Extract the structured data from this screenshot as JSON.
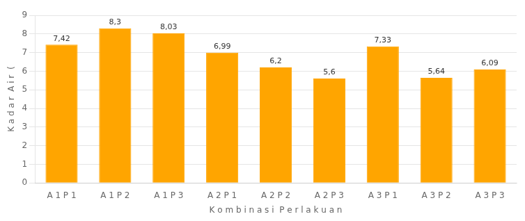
{
  "chart_data": {
    "type": "bar",
    "categories": [
      "A 1 P 1",
      "A 1 P 2",
      "A 1 P 3",
      "A 2 P 1",
      "A 2 P 2",
      "A 2 P 3",
      "A 3 P 1",
      "A 3 P 2",
      "A 3 P 3"
    ],
    "values": [
      7.42,
      8.3,
      8.03,
      6.99,
      6.2,
      5.6,
      7.33,
      5.64,
      6.09
    ],
    "value_labels": [
      "7,42",
      "8,3",
      "8,03",
      "6,99",
      "6,2",
      "5,6",
      "7,33",
      "5,64",
      "6,09"
    ],
    "data_labels": true,
    "color": "#FFA500",
    "xlabel": "K o m b i n a s i  P e r l a k u a n",
    "ylabel": "K a d a r  A i r  (",
    "ylim": [
      0,
      9
    ],
    "yticks": [
      0,
      1,
      2,
      3,
      4,
      5,
      6,
      7,
      8,
      9
    ],
    "grid": true
  }
}
